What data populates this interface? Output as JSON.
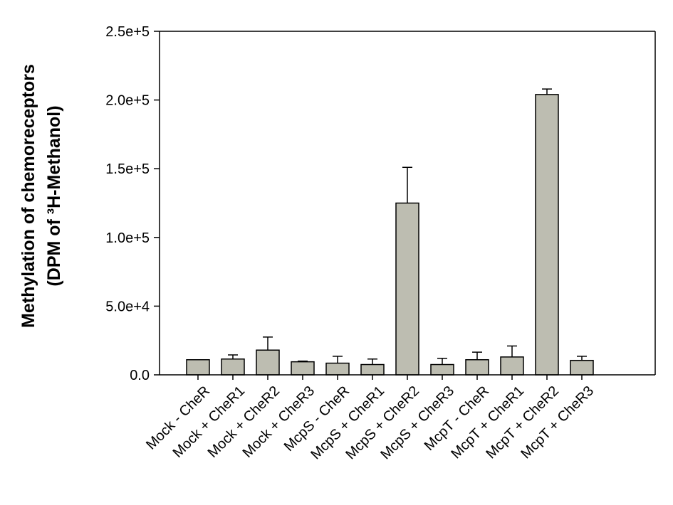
{
  "chart_data": {
    "type": "bar",
    "title": "",
    "xlabel": "",
    "ylabel_lines": [
      "Methylation of chemoreceptors",
      "(DPM of ³H-Methanol)"
    ],
    "ylim": [
      0,
      250000
    ],
    "yticks": [
      0,
      50000,
      100000,
      150000,
      200000,
      250000
    ],
    "ytick_labels": [
      "0.0",
      "5.0e+4",
      "1.0e+5",
      "1.5e+5",
      "2.0e+5",
      "2.5e+5"
    ],
    "categories": [
      "Mock - CheR",
      "Mock + CheR1",
      "Mock + CheR2",
      "Mock + CheR3",
      "McpS - CheR",
      "McpS + CheR1",
      "McpS + CheR2",
      "McpS + CheR3",
      "McpT - CheR",
      "McpT + CheR1",
      "McpT + CheR2",
      "McpT + CheR3"
    ],
    "values": [
      11000,
      11500,
      18000,
      9500,
      8500,
      7500,
      125000,
      7500,
      11000,
      13000,
      204000,
      10500
    ],
    "errors": [
      0,
      3000,
      9500,
      500,
      5000,
      4000,
      26000,
      4500,
      5500,
      8000,
      4000,
      3000
    ],
    "grid": false,
    "legend": "none",
    "colors": {
      "bar_fill": "#bdbdb1",
      "bar_stroke": "#000000",
      "axis": "#000000"
    }
  }
}
